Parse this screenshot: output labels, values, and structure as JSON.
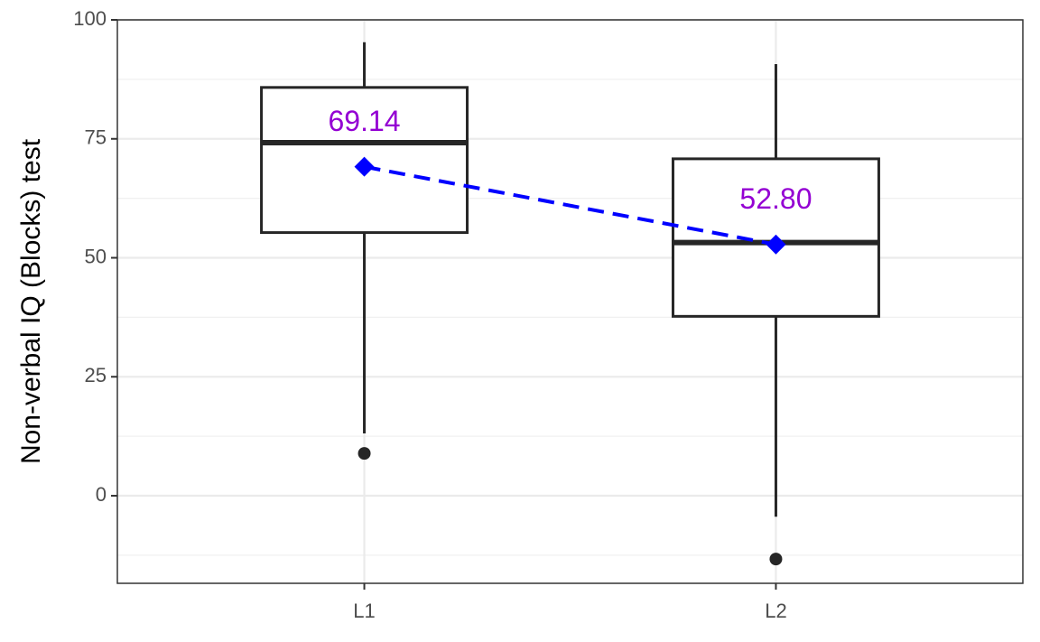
{
  "chart_data": {
    "type": "box",
    "y_label": "Non-verbal IQ (Blocks) test",
    "categories": [
      "L1",
      "L2"
    ],
    "whisker_low": [
      13.1,
      -4.4
    ],
    "q1": [
      55.3,
      37.7
    ],
    "median": [
      74.2,
      53.2
    ],
    "q3": [
      85.8,
      70.8
    ],
    "whisker_high": [
      95.3,
      90.7
    ],
    "outliers": [
      [
        8.9
      ],
      [
        -13.3
      ]
    ],
    "mean": {
      "values": [
        69.14,
        52.8
      ],
      "value_labels": [
        "69.14",
        "52.80"
      ],
      "color": "#0000ff",
      "label_color": "#9400d3"
    },
    "box_color": "#262626",
    "ylim": [
      -18.4,
      100
    ],
    "yticks": [
      0,
      25,
      50,
      75,
      100
    ],
    "minor_yticks": [
      -12.5,
      12.5,
      37.5,
      62.5,
      87.5
    ],
    "grid": true
  }
}
